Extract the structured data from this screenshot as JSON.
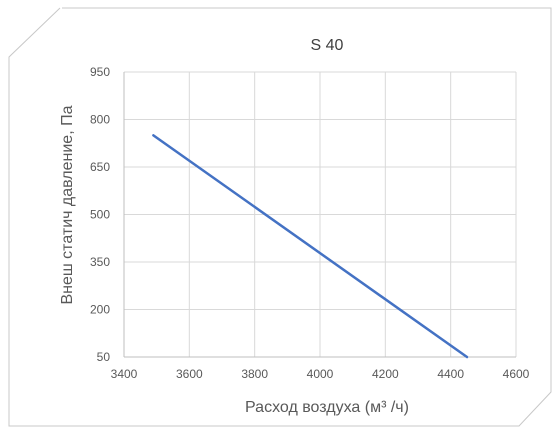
{
  "chart_data": {
    "type": "line",
    "title": "S 40",
    "xlabel": "Расход воздуха (м³ /ч)",
    "ylabel": "Внеш статич давление, Па",
    "xlim": [
      3400,
      4600
    ],
    "ylim": [
      50,
      950
    ],
    "x_ticks": [
      3400,
      3600,
      3800,
      4000,
      4200,
      4400,
      4600
    ],
    "y_ticks": [
      50,
      200,
      350,
      500,
      650,
      800,
      950
    ],
    "grid": true,
    "legend": "none",
    "series": [
      {
        "x": [
          3490,
          4450
        ],
        "y": [
          750,
          50
        ],
        "color": "#4472c4"
      }
    ],
    "colors": {
      "line": "#4472c4",
      "grid": "#d9d9d9",
      "frame": "#bfbfbf",
      "text": "#595959"
    }
  }
}
